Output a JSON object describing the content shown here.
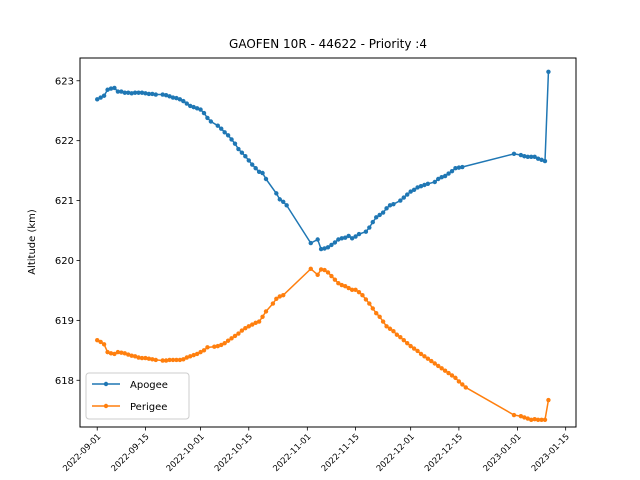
{
  "chart_data": {
    "type": "line",
    "title": "GAOFEN 10R - 44622 - Priority :4",
    "xlabel": "",
    "ylabel": "Altitude (km)",
    "x_range": [
      "2022-08-27",
      "2023-01-18"
    ],
    "ylim": [
      617.22,
      623.38
    ],
    "x_ticks": [
      "2022-09-01",
      "2022-09-15",
      "2022-10-01",
      "2022-10-15",
      "2022-11-01",
      "2022-11-15",
      "2022-12-01",
      "2022-12-15",
      "2023-01-01",
      "2023-01-15"
    ],
    "y_ticks": [
      618,
      619,
      620,
      621,
      622,
      623
    ],
    "grid": false,
    "legend_position": "lower-left",
    "series": [
      {
        "name": "Apogee",
        "color": "#1f77b4",
        "points": [
          [
            "2022-09-01",
            622.69
          ],
          [
            "2022-09-02",
            622.72
          ],
          [
            "2022-09-03",
            622.75
          ],
          [
            "2022-09-04",
            622.85
          ],
          [
            "2022-09-05",
            622.87
          ],
          [
            "2022-09-06",
            622.88
          ],
          [
            "2022-09-07",
            622.82
          ],
          [
            "2022-09-08",
            622.82
          ],
          [
            "2022-09-09",
            622.8
          ],
          [
            "2022-09-10",
            622.8
          ],
          [
            "2022-09-11",
            622.79
          ],
          [
            "2022-09-12",
            622.8
          ],
          [
            "2022-09-13",
            622.8
          ],
          [
            "2022-09-14",
            622.8
          ],
          [
            "2022-09-15",
            622.79
          ],
          [
            "2022-09-16",
            622.78
          ],
          [
            "2022-09-17",
            622.78
          ],
          [
            "2022-09-18",
            622.77
          ],
          [
            "2022-09-20",
            622.77
          ],
          [
            "2022-09-21",
            622.76
          ],
          [
            "2022-09-22",
            622.74
          ],
          [
            "2022-09-23",
            622.72
          ],
          [
            "2022-09-24",
            622.71
          ],
          [
            "2022-09-25",
            622.69
          ],
          [
            "2022-09-26",
            622.66
          ],
          [
            "2022-09-27",
            622.62
          ],
          [
            "2022-09-28",
            622.58
          ],
          [
            "2022-09-29",
            622.56
          ],
          [
            "2022-09-30",
            622.54
          ],
          [
            "2022-10-01",
            622.52
          ],
          [
            "2022-10-02",
            622.46
          ],
          [
            "2022-10-03",
            622.38
          ],
          [
            "2022-10-04",
            622.32
          ],
          [
            "2022-10-06",
            622.25
          ],
          [
            "2022-10-07",
            622.2
          ],
          [
            "2022-10-08",
            622.14
          ],
          [
            "2022-10-09",
            622.09
          ],
          [
            "2022-10-10",
            622.02
          ],
          [
            "2022-10-11",
            621.95
          ],
          [
            "2022-10-12",
            621.86
          ],
          [
            "2022-10-13",
            621.8
          ],
          [
            "2022-10-14",
            621.74
          ],
          [
            "2022-10-15",
            621.67
          ],
          [
            "2022-10-16",
            621.6
          ],
          [
            "2022-10-17",
            621.54
          ],
          [
            "2022-10-18",
            621.48
          ],
          [
            "2022-10-19",
            621.46
          ],
          [
            "2022-10-20",
            621.36
          ],
          [
            "2022-10-23",
            621.12
          ],
          [
            "2022-10-24",
            621.02
          ],
          [
            "2022-10-25",
            620.98
          ],
          [
            "2022-10-26",
            620.92
          ],
          [
            "2022-11-02",
            620.29
          ],
          [
            "2022-11-04",
            620.35
          ],
          [
            "2022-11-05",
            620.19
          ],
          [
            "2022-11-06",
            620.2
          ],
          [
            "2022-11-07",
            620.22
          ],
          [
            "2022-11-08",
            620.26
          ],
          [
            "2022-11-09",
            620.3
          ],
          [
            "2022-11-10",
            620.35
          ],
          [
            "2022-11-11",
            620.37
          ],
          [
            "2022-11-12",
            620.38
          ],
          [
            "2022-11-13",
            620.41
          ],
          [
            "2022-11-14",
            620.37
          ],
          [
            "2022-11-15",
            620.4
          ],
          [
            "2022-11-16",
            620.44
          ],
          [
            "2022-11-18",
            620.48
          ],
          [
            "2022-11-19",
            620.55
          ],
          [
            "2022-11-20",
            620.64
          ],
          [
            "2022-11-21",
            620.72
          ],
          [
            "2022-11-22",
            620.76
          ],
          [
            "2022-11-23",
            620.8
          ],
          [
            "2022-11-24",
            620.87
          ],
          [
            "2022-11-25",
            620.92
          ],
          [
            "2022-11-26",
            620.94
          ],
          [
            "2022-11-28",
            621.0
          ],
          [
            "2022-11-29",
            621.05
          ],
          [
            "2022-11-30",
            621.1
          ],
          [
            "2022-12-01",
            621.15
          ],
          [
            "2022-12-02",
            621.18
          ],
          [
            "2022-12-03",
            621.22
          ],
          [
            "2022-12-04",
            621.24
          ],
          [
            "2022-12-05",
            621.26
          ],
          [
            "2022-12-06",
            621.28
          ],
          [
            "2022-12-08",
            621.31
          ],
          [
            "2022-12-09",
            621.36
          ],
          [
            "2022-12-10",
            621.39
          ],
          [
            "2022-12-11",
            621.41
          ],
          [
            "2022-12-12",
            621.45
          ],
          [
            "2022-12-13",
            621.49
          ],
          [
            "2022-12-14",
            621.54
          ],
          [
            "2022-12-15",
            621.55
          ],
          [
            "2022-12-16",
            621.56
          ],
          [
            "2022-12-31",
            621.78
          ],
          [
            "2023-01-02",
            621.76
          ],
          [
            "2023-01-03",
            621.74
          ],
          [
            "2023-01-04",
            621.73
          ],
          [
            "2023-01-05",
            621.73
          ],
          [
            "2023-01-06",
            621.73
          ],
          [
            "2023-01-07",
            621.7
          ],
          [
            "2023-01-08",
            621.68
          ],
          [
            "2023-01-09",
            621.66
          ],
          [
            "2023-01-10",
            623.15
          ]
        ]
      },
      {
        "name": "Perigee",
        "color": "#ff7f0e",
        "points": [
          [
            "2022-09-01",
            618.67
          ],
          [
            "2022-09-02",
            618.64
          ],
          [
            "2022-09-03",
            618.6
          ],
          [
            "2022-09-04",
            618.47
          ],
          [
            "2022-09-05",
            618.45
          ],
          [
            "2022-09-06",
            618.44
          ],
          [
            "2022-09-07",
            618.47
          ],
          [
            "2022-09-08",
            618.46
          ],
          [
            "2022-09-09",
            618.45
          ],
          [
            "2022-09-10",
            618.43
          ],
          [
            "2022-09-11",
            618.41
          ],
          [
            "2022-09-12",
            618.4
          ],
          [
            "2022-09-13",
            618.38
          ],
          [
            "2022-09-14",
            618.37
          ],
          [
            "2022-09-15",
            618.37
          ],
          [
            "2022-09-16",
            618.36
          ],
          [
            "2022-09-17",
            618.35
          ],
          [
            "2022-09-18",
            618.34
          ],
          [
            "2022-09-20",
            618.33
          ],
          [
            "2022-09-21",
            618.33
          ],
          [
            "2022-09-22",
            618.34
          ],
          [
            "2022-09-23",
            618.34
          ],
          [
            "2022-09-24",
            618.34
          ],
          [
            "2022-09-25",
            618.34
          ],
          [
            "2022-09-26",
            618.35
          ],
          [
            "2022-09-27",
            618.38
          ],
          [
            "2022-09-28",
            618.4
          ],
          [
            "2022-09-29",
            618.42
          ],
          [
            "2022-09-30",
            618.44
          ],
          [
            "2022-10-01",
            618.47
          ],
          [
            "2022-10-02",
            618.5
          ],
          [
            "2022-10-03",
            618.55
          ],
          [
            "2022-10-05",
            618.56
          ],
          [
            "2022-10-06",
            618.57
          ],
          [
            "2022-10-07",
            618.59
          ],
          [
            "2022-10-08",
            618.62
          ],
          [
            "2022-10-09",
            618.66
          ],
          [
            "2022-10-10",
            618.7
          ],
          [
            "2022-10-11",
            618.74
          ],
          [
            "2022-10-12",
            618.78
          ],
          [
            "2022-10-13",
            618.83
          ],
          [
            "2022-10-14",
            618.87
          ],
          [
            "2022-10-15",
            618.9
          ],
          [
            "2022-10-16",
            618.93
          ],
          [
            "2022-10-17",
            618.96
          ],
          [
            "2022-10-18",
            618.98
          ],
          [
            "2022-10-19",
            619.06
          ],
          [
            "2022-10-20",
            619.15
          ],
          [
            "2022-10-22",
            619.28
          ],
          [
            "2022-10-23",
            619.36
          ],
          [
            "2022-10-24",
            619.4
          ],
          [
            "2022-10-25",
            619.42
          ],
          [
            "2022-11-02",
            619.86
          ],
          [
            "2022-11-04",
            619.76
          ],
          [
            "2022-11-05",
            619.85
          ],
          [
            "2022-11-06",
            619.84
          ],
          [
            "2022-11-07",
            619.8
          ],
          [
            "2022-11-08",
            619.74
          ],
          [
            "2022-11-09",
            619.68
          ],
          [
            "2022-11-10",
            619.62
          ],
          [
            "2022-11-11",
            619.59
          ],
          [
            "2022-11-12",
            619.57
          ],
          [
            "2022-11-13",
            619.54
          ],
          [
            "2022-11-14",
            619.51
          ],
          [
            "2022-11-15",
            619.51
          ],
          [
            "2022-11-16",
            619.47
          ],
          [
            "2022-11-17",
            619.42
          ],
          [
            "2022-11-18",
            619.35
          ],
          [
            "2022-11-19",
            619.28
          ],
          [
            "2022-11-20",
            619.2
          ],
          [
            "2022-11-21",
            619.12
          ],
          [
            "2022-11-22",
            619.06
          ],
          [
            "2022-11-23",
            618.98
          ],
          [
            "2022-11-24",
            618.9
          ],
          [
            "2022-11-25",
            618.86
          ],
          [
            "2022-11-26",
            618.82
          ],
          [
            "2022-11-27",
            618.76
          ],
          [
            "2022-11-28",
            618.72
          ],
          [
            "2022-11-29",
            618.67
          ],
          [
            "2022-11-30",
            618.62
          ],
          [
            "2022-12-01",
            618.57
          ],
          [
            "2022-12-02",
            618.53
          ],
          [
            "2022-12-03",
            618.49
          ],
          [
            "2022-12-04",
            618.44
          ],
          [
            "2022-12-05",
            618.4
          ],
          [
            "2022-12-06",
            618.36
          ],
          [
            "2022-12-07",
            618.32
          ],
          [
            "2022-12-08",
            618.28
          ],
          [
            "2022-12-09",
            618.24
          ],
          [
            "2022-12-10",
            618.2
          ],
          [
            "2022-12-11",
            618.16
          ],
          [
            "2022-12-12",
            618.12
          ],
          [
            "2022-12-13",
            618.08
          ],
          [
            "2022-12-14",
            618.04
          ],
          [
            "2022-12-15",
            617.98
          ],
          [
            "2022-12-16",
            617.93
          ],
          [
            "2022-12-17",
            617.88
          ],
          [
            "2022-12-31",
            617.42
          ],
          [
            "2023-01-02",
            617.4
          ],
          [
            "2023-01-03",
            617.38
          ],
          [
            "2023-01-04",
            617.36
          ],
          [
            "2023-01-05",
            617.34
          ],
          [
            "2023-01-06",
            617.35
          ],
          [
            "2023-01-07",
            617.34
          ],
          [
            "2023-01-08",
            617.34
          ],
          [
            "2023-01-09",
            617.34
          ],
          [
            "2023-01-10",
            617.67
          ]
        ]
      }
    ]
  }
}
